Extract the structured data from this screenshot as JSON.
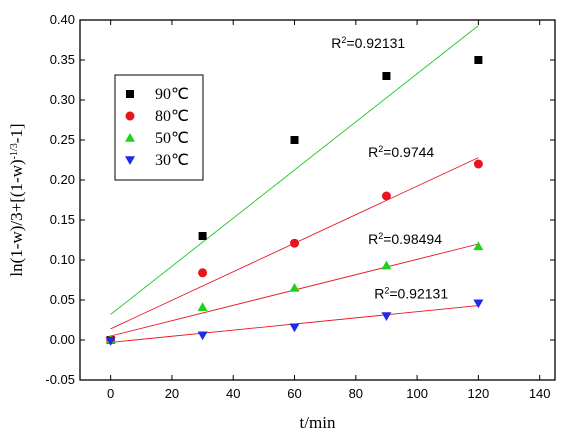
{
  "chart_data": {
    "type": "scatter",
    "xlabel": "t/min",
    "ylabel_parts": {
      "main": "ln(1-w)/3+[(1-w)",
      "sup": "-1/3",
      "tail": "-1]"
    },
    "xlim": [
      -10,
      145
    ],
    "ylim": [
      -0.05,
      0.4
    ],
    "xticks": [
      0,
      20,
      40,
      60,
      80,
      100,
      120,
      140
    ],
    "yticks": [
      -0.05,
      0.0,
      0.05,
      0.1,
      0.15,
      0.2,
      0.25,
      0.3,
      0.35,
      0.4
    ],
    "grid": false,
    "legend_position": "upper-left",
    "series": [
      {
        "name": "90℃",
        "color": "#000000",
        "marker": "square",
        "x": [
          0,
          30,
          60,
          90,
          120
        ],
        "y": [
          0.0,
          0.13,
          0.25,
          0.33,
          0.35
        ],
        "fit": {
          "color": "#1ec81e",
          "x0": 0,
          "y0": 0.032,
          "x1": 120,
          "y1": 0.393
        },
        "annotation": {
          "base": "R",
          "sup": "2",
          "text": "=0.92131",
          "x": 72,
          "y": 0.365
        }
      },
      {
        "name": "80℃",
        "color": "#e8141e",
        "marker": "circle",
        "x": [
          0,
          30,
          60,
          90,
          120
        ],
        "y": [
          0.0,
          0.084,
          0.121,
          0.18,
          0.22
        ],
        "fit": {
          "color": "#e8141e",
          "x0": 0,
          "y0": 0.014,
          "x1": 120,
          "y1": 0.228
        },
        "annotation": {
          "base": "R",
          "sup": "2",
          "text": "=0.9744",
          "x": 84,
          "y": 0.229
        }
      },
      {
        "name": "50℃",
        "color": "#1ed21e",
        "marker": "triangle-up",
        "x": [
          0,
          30,
          60,
          90,
          120
        ],
        "y": [
          0.0,
          0.041,
          0.065,
          0.093,
          0.117
        ],
        "fit": {
          "color": "#e8141e",
          "x0": 0,
          "y0": 0.005,
          "x1": 120,
          "y1": 0.12
        },
        "annotation": {
          "base": "R",
          "sup": "2",
          "text": "=0.98494",
          "x": 84,
          "y": 0.12
        }
      },
      {
        "name": "30℃",
        "color": "#1e2ae6",
        "marker": "triangle-down",
        "x": [
          0,
          30,
          60,
          90,
          120
        ],
        "y": [
          -0.001,
          0.006,
          0.016,
          0.03,
          0.046
        ],
        "fit": {
          "color": "#e8141e",
          "x0": 0,
          "y0": -0.003,
          "x1": 120,
          "y1": 0.043
        },
        "annotation": {
          "base": "R",
          "sup": "2",
          "text": "=0.92131",
          "x": 86,
          "y": 0.052
        }
      }
    ]
  }
}
